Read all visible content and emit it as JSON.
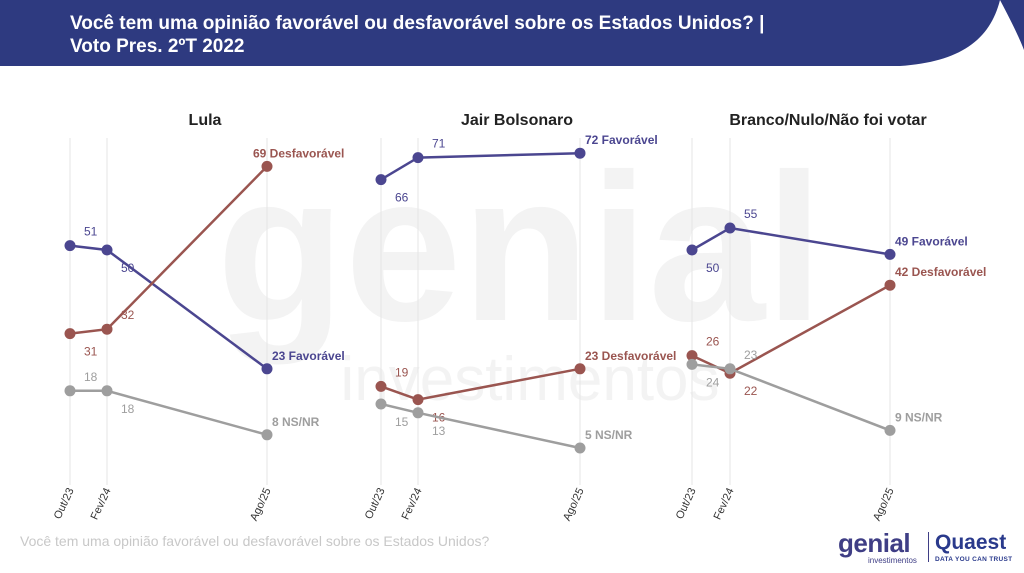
{
  "header": {
    "title_line1": "Você tem uma opinião favorável ou desfavorável sobre os Estados Unidos? |",
    "title_line2": "Voto Pres. 2ºT 2022"
  },
  "watermark": {
    "word": "genial",
    "sub": "investimentos"
  },
  "footer": {
    "question": "Você tem uma opinião favorável ou desfavorável sobre os Estados Unidos?"
  },
  "logos": {
    "genial": "genial",
    "genial_sub": "investimentos",
    "quaest": "Quaest",
    "quaest_sub": "DATA YOU CAN TRUST"
  },
  "colors": {
    "header_bg": "#2e3a80",
    "favoravel": "#4b4690",
    "desfavoravel": "#9a5550",
    "nsnr": "#9e9e9e"
  },
  "chart_data": [
    {
      "type": "line",
      "title": "Lula",
      "categories": [
        "Out/23",
        "Fev/24",
        "Ago/25"
      ],
      "ylim": [
        0,
        100
      ],
      "series": [
        {
          "name": "Favorável",
          "values": [
            51,
            50,
            23
          ]
        },
        {
          "name": "Desfavorável",
          "values": [
            31,
            32,
            69
          ]
        },
        {
          "name": "NS/NR",
          "values": [
            18,
            18,
            8
          ]
        }
      ]
    },
    {
      "type": "line",
      "title": "Jair Bolsonaro",
      "categories": [
        "Out/23",
        "Fev/24",
        "Ago/25"
      ],
      "ylim": [
        0,
        100
      ],
      "series": [
        {
          "name": "Favorável",
          "values": [
            66,
            71,
            72
          ]
        },
        {
          "name": "Desfavorável",
          "values": [
            19,
            16,
            23
          ]
        },
        {
          "name": "NS/NR",
          "values": [
            15,
            13,
            5
          ]
        }
      ]
    },
    {
      "type": "line",
      "title": "Branco/Nulo/Não foi votar",
      "categories": [
        "Out/23",
        "Fev/24",
        "Ago/25"
      ],
      "ylim": [
        0,
        100
      ],
      "series": [
        {
          "name": "Favorável",
          "values": [
            50,
            55,
            49
          ]
        },
        {
          "name": "Desfavorável",
          "values": [
            26,
            22,
            42
          ]
        },
        {
          "name": "NS/NR",
          "values": [
            24,
            23,
            9
          ]
        }
      ]
    }
  ]
}
